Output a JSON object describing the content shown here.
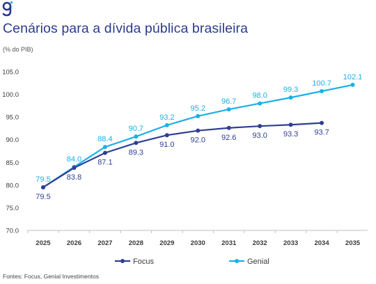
{
  "header": {
    "title": "Cenários para a dívida pública brasileira",
    "unit": "(% do PIB)"
  },
  "footer": {
    "source": "Fontes: Focus, Genial Investimentos"
  },
  "colors": {
    "title": "#2b3a8f",
    "focus": "#2f3f93",
    "genial": "#1ab0e8",
    "axis_text": "#3a3a3a"
  },
  "chart_data": {
    "type": "line",
    "title": "Cenários para a dívida pública brasileira",
    "ylabel": "(% do PIB)",
    "x": [
      "2025",
      "2026",
      "2027",
      "2028",
      "2029",
      "2030",
      "2031",
      "2032",
      "2033",
      "2034",
      "2035"
    ],
    "ylim": [
      70,
      105
    ],
    "yticks": [
      70,
      75,
      80,
      85,
      90,
      95,
      100,
      105
    ],
    "ytick_labels": [
      "70.0",
      "75.0",
      "80.0",
      "85.0",
      "90.0",
      "95.0",
      "100.0",
      "105.0"
    ],
    "grid": false,
    "legend": "bottom",
    "series": [
      {
        "name": "Focus",
        "values": [
          79.5,
          83.8,
          87.1,
          89.3,
          91.0,
          92.0,
          92.6,
          93.0,
          93.3,
          93.7,
          null
        ],
        "labels": [
          "79.5",
          "83.8",
          "87.1",
          "89.3",
          "91.0",
          "92.0",
          "92.6",
          "93.0",
          "93.3",
          "93.7",
          ""
        ],
        "label_position": "below",
        "color": "#2f3f93"
      },
      {
        "name": "Genial",
        "values": [
          79.5,
          84.0,
          88.4,
          90.7,
          93.2,
          95.2,
          96.7,
          98.0,
          99.3,
          100.7,
          102.1
        ],
        "labels": [
          "79.5",
          "84.0",
          "88.4",
          "90.7",
          "93.2",
          "95.2",
          "96.7",
          "98.0",
          "99.3",
          "100.7",
          "102.1"
        ],
        "label_position": "above",
        "color": "#1ab0e8"
      }
    ]
  }
}
